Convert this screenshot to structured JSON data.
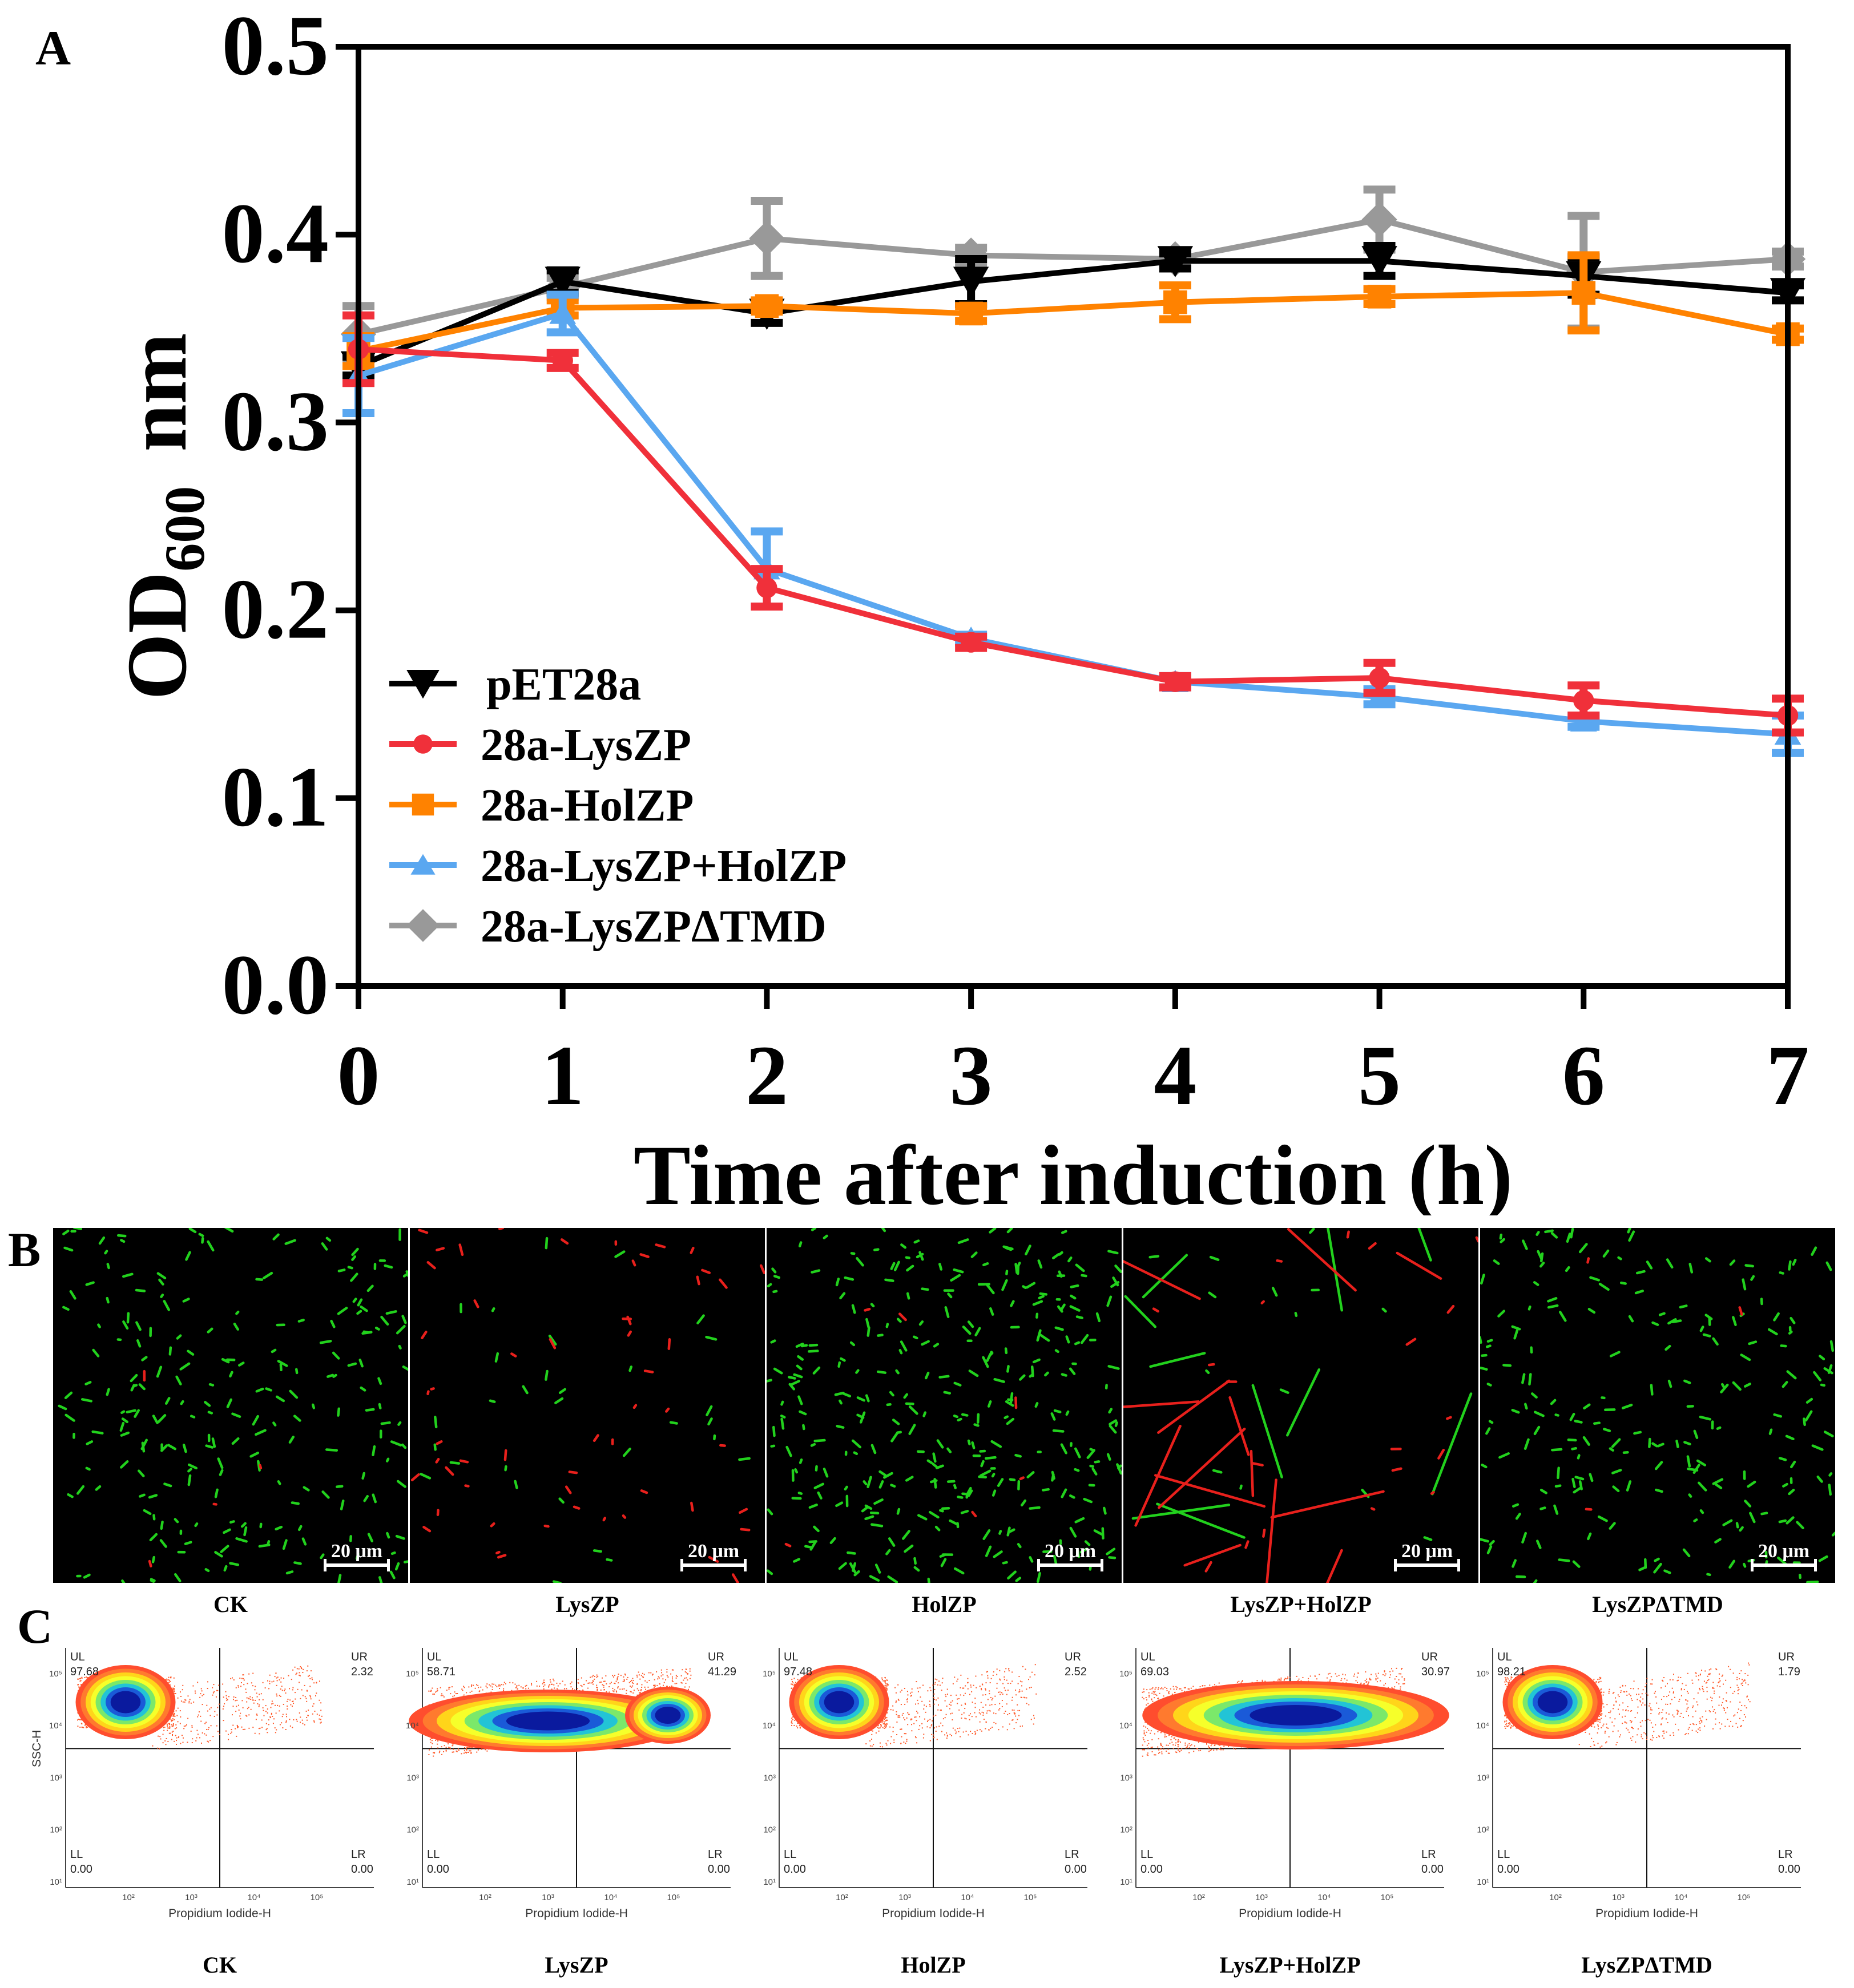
{
  "panels": {
    "a": "A",
    "b": "B",
    "c": "C"
  },
  "chart_data": {
    "type": "line",
    "title": "",
    "xlabel": "Time after induction (h)",
    "ylabel": {
      "main": "OD",
      "subscript": "600",
      "unit": "nm"
    },
    "xlim": [
      0,
      7
    ],
    "ylim": [
      0.0,
      0.5
    ],
    "x_ticks": [
      "0",
      "1",
      "2",
      "3",
      "4",
      "5",
      "6",
      "7"
    ],
    "y_ticks": [
      "0.0",
      "0.1",
      "0.2",
      "0.3",
      "0.4",
      "0.5"
    ],
    "x": [
      0,
      1,
      2,
      3,
      4,
      5,
      6,
      7
    ],
    "legend_position": "bottom-left",
    "series": [
      {
        "name": "pET28a",
        "color": "#000000",
        "marker": "triangle-down",
        "values": [
          0.33,
          0.375,
          0.358,
          0.375,
          0.386,
          0.386,
          0.378,
          0.369
        ],
        "errors": [
          0.005,
          0.006,
          0.005,
          0.012,
          0.004,
          0.008,
          0.01,
          0.004
        ]
      },
      {
        "name": "28a-LysZP",
        "color": "#f0303a",
        "marker": "circle",
        "values": [
          0.339,
          0.333,
          0.212,
          0.183,
          0.162,
          0.164,
          0.152,
          0.144
        ],
        "errors": [
          0.018,
          0.004,
          0.01,
          0.003,
          0.003,
          0.008,
          0.008,
          0.009
        ]
      },
      {
        "name": "28a-HolZP",
        "color": "#ff8200",
        "marker": "square",
        "values": [
          0.338,
          0.361,
          0.362,
          0.358,
          0.364,
          0.367,
          0.369,
          0.347
        ],
        "errors": [
          0.008,
          0.004,
          0.003,
          0.004,
          0.009,
          0.004,
          0.02,
          0.003
        ]
      },
      {
        "name": "28a-LysZP+HolZP",
        "color": "#5aa7f0",
        "marker": "triangle-up",
        "values": [
          0.325,
          0.358,
          0.222,
          0.185,
          0.162,
          0.154,
          0.141,
          0.134
        ],
        "errors": [
          0.02,
          0.01,
          0.02,
          0.002,
          0.003,
          0.004,
          0.003,
          0.01
        ]
      },
      {
        "name": "28a-LysZPΔTMD",
        "color": "#999999",
        "marker": "diamond",
        "values": [
          0.347,
          0.372,
          0.398,
          0.389,
          0.387,
          0.408,
          0.38,
          0.387
        ],
        "errors": [
          0.015,
          0.005,
          0.02,
          0.004,
          0.003,
          0.016,
          0.03,
          0.004
        ]
      }
    ]
  },
  "microscopy": {
    "scale_label": "20 μm",
    "images": [
      {
        "label": "CK",
        "green_cells": 230,
        "red_cells": 4,
        "seed": 11
      },
      {
        "label": "LysZP",
        "green_cells": 30,
        "red_cells": 55,
        "seed": 23
      },
      {
        "label": "HolZP",
        "green_cells": 340,
        "red_cells": 6,
        "seed": 37
      },
      {
        "label": "LysZP+HolZP",
        "green_cells": 24,
        "red_cells": 34,
        "seed": 53
      },
      {
        "label": "LysZPΔTMD",
        "green_cells": 220,
        "red_cells": 3,
        "seed": 71
      }
    ]
  },
  "flow_cytometry": {
    "xlabel": "Propidium Iodide-H",
    "ylabel": "SSC-H",
    "x_ticks": [
      "10²",
      "10³",
      "10⁴",
      "10⁵"
    ],
    "y_ticks": [
      "10¹",
      "10²",
      "10³",
      "10⁴",
      "10⁵"
    ],
    "quadrants": {
      "ul": "UL",
      "ur": "UR",
      "ll": "LL",
      "lr": "LR"
    },
    "plots": [
      {
        "label": "CK",
        "ul": "97.68",
        "ur": "2.32",
        "ll": "0.00",
        "lr": "0.00"
      },
      {
        "label": "LysZP",
        "ul": "58.71",
        "ur": "41.29",
        "ll": "0.00",
        "lr": "0.00"
      },
      {
        "label": "HolZP",
        "ul": "97.48",
        "ur": "2.52",
        "ll": "0.00",
        "lr": "0.00"
      },
      {
        "label": "LysZP+HolZP",
        "ul": "69.03",
        "ur": "30.97",
        "ll": "0.00",
        "lr": "0.00"
      },
      {
        "label": "LysZPΔTMD",
        "ul": "98.21",
        "ur": "1.79",
        "ll": "0.00",
        "lr": "0.00"
      }
    ]
  }
}
